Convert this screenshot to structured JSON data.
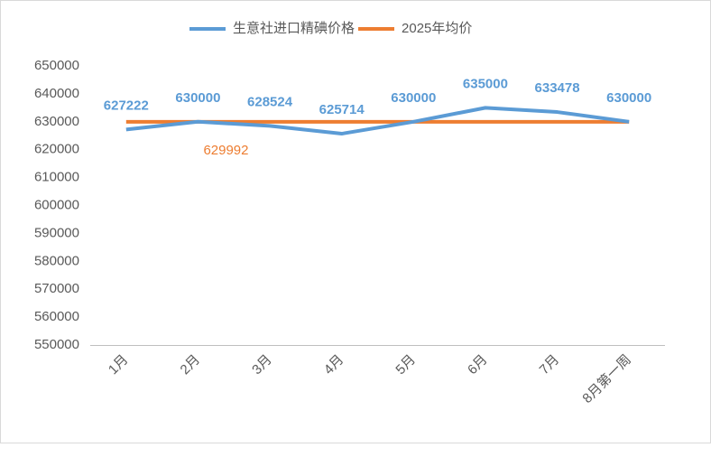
{
  "chart_data": {
    "type": "line",
    "categories": [
      "1月",
      "2月",
      "3月",
      "4月",
      "5月",
      "6月",
      "7月",
      "8月第一周"
    ],
    "series": [
      {
        "name": "生意社进口精碘价格",
        "color": "#5b9bd5",
        "values": [
          627222,
          630000,
          628524,
          625714,
          630000,
          635000,
          633478,
          630000
        ],
        "data_labels": true,
        "drop_lines": true
      },
      {
        "name": "2025年均价",
        "color": "#ed7d31",
        "values": [
          629992,
          629992,
          629992,
          629992,
          629992,
          629992,
          629992,
          629992
        ],
        "labeled_point": 1
      }
    ],
    "ylim": [
      550000,
      650000
    ],
    "yticks": [
      550000,
      560000,
      570000,
      580000,
      590000,
      600000,
      610000,
      620000,
      630000,
      640000,
      650000
    ],
    "legend": "top",
    "grid": false
  }
}
